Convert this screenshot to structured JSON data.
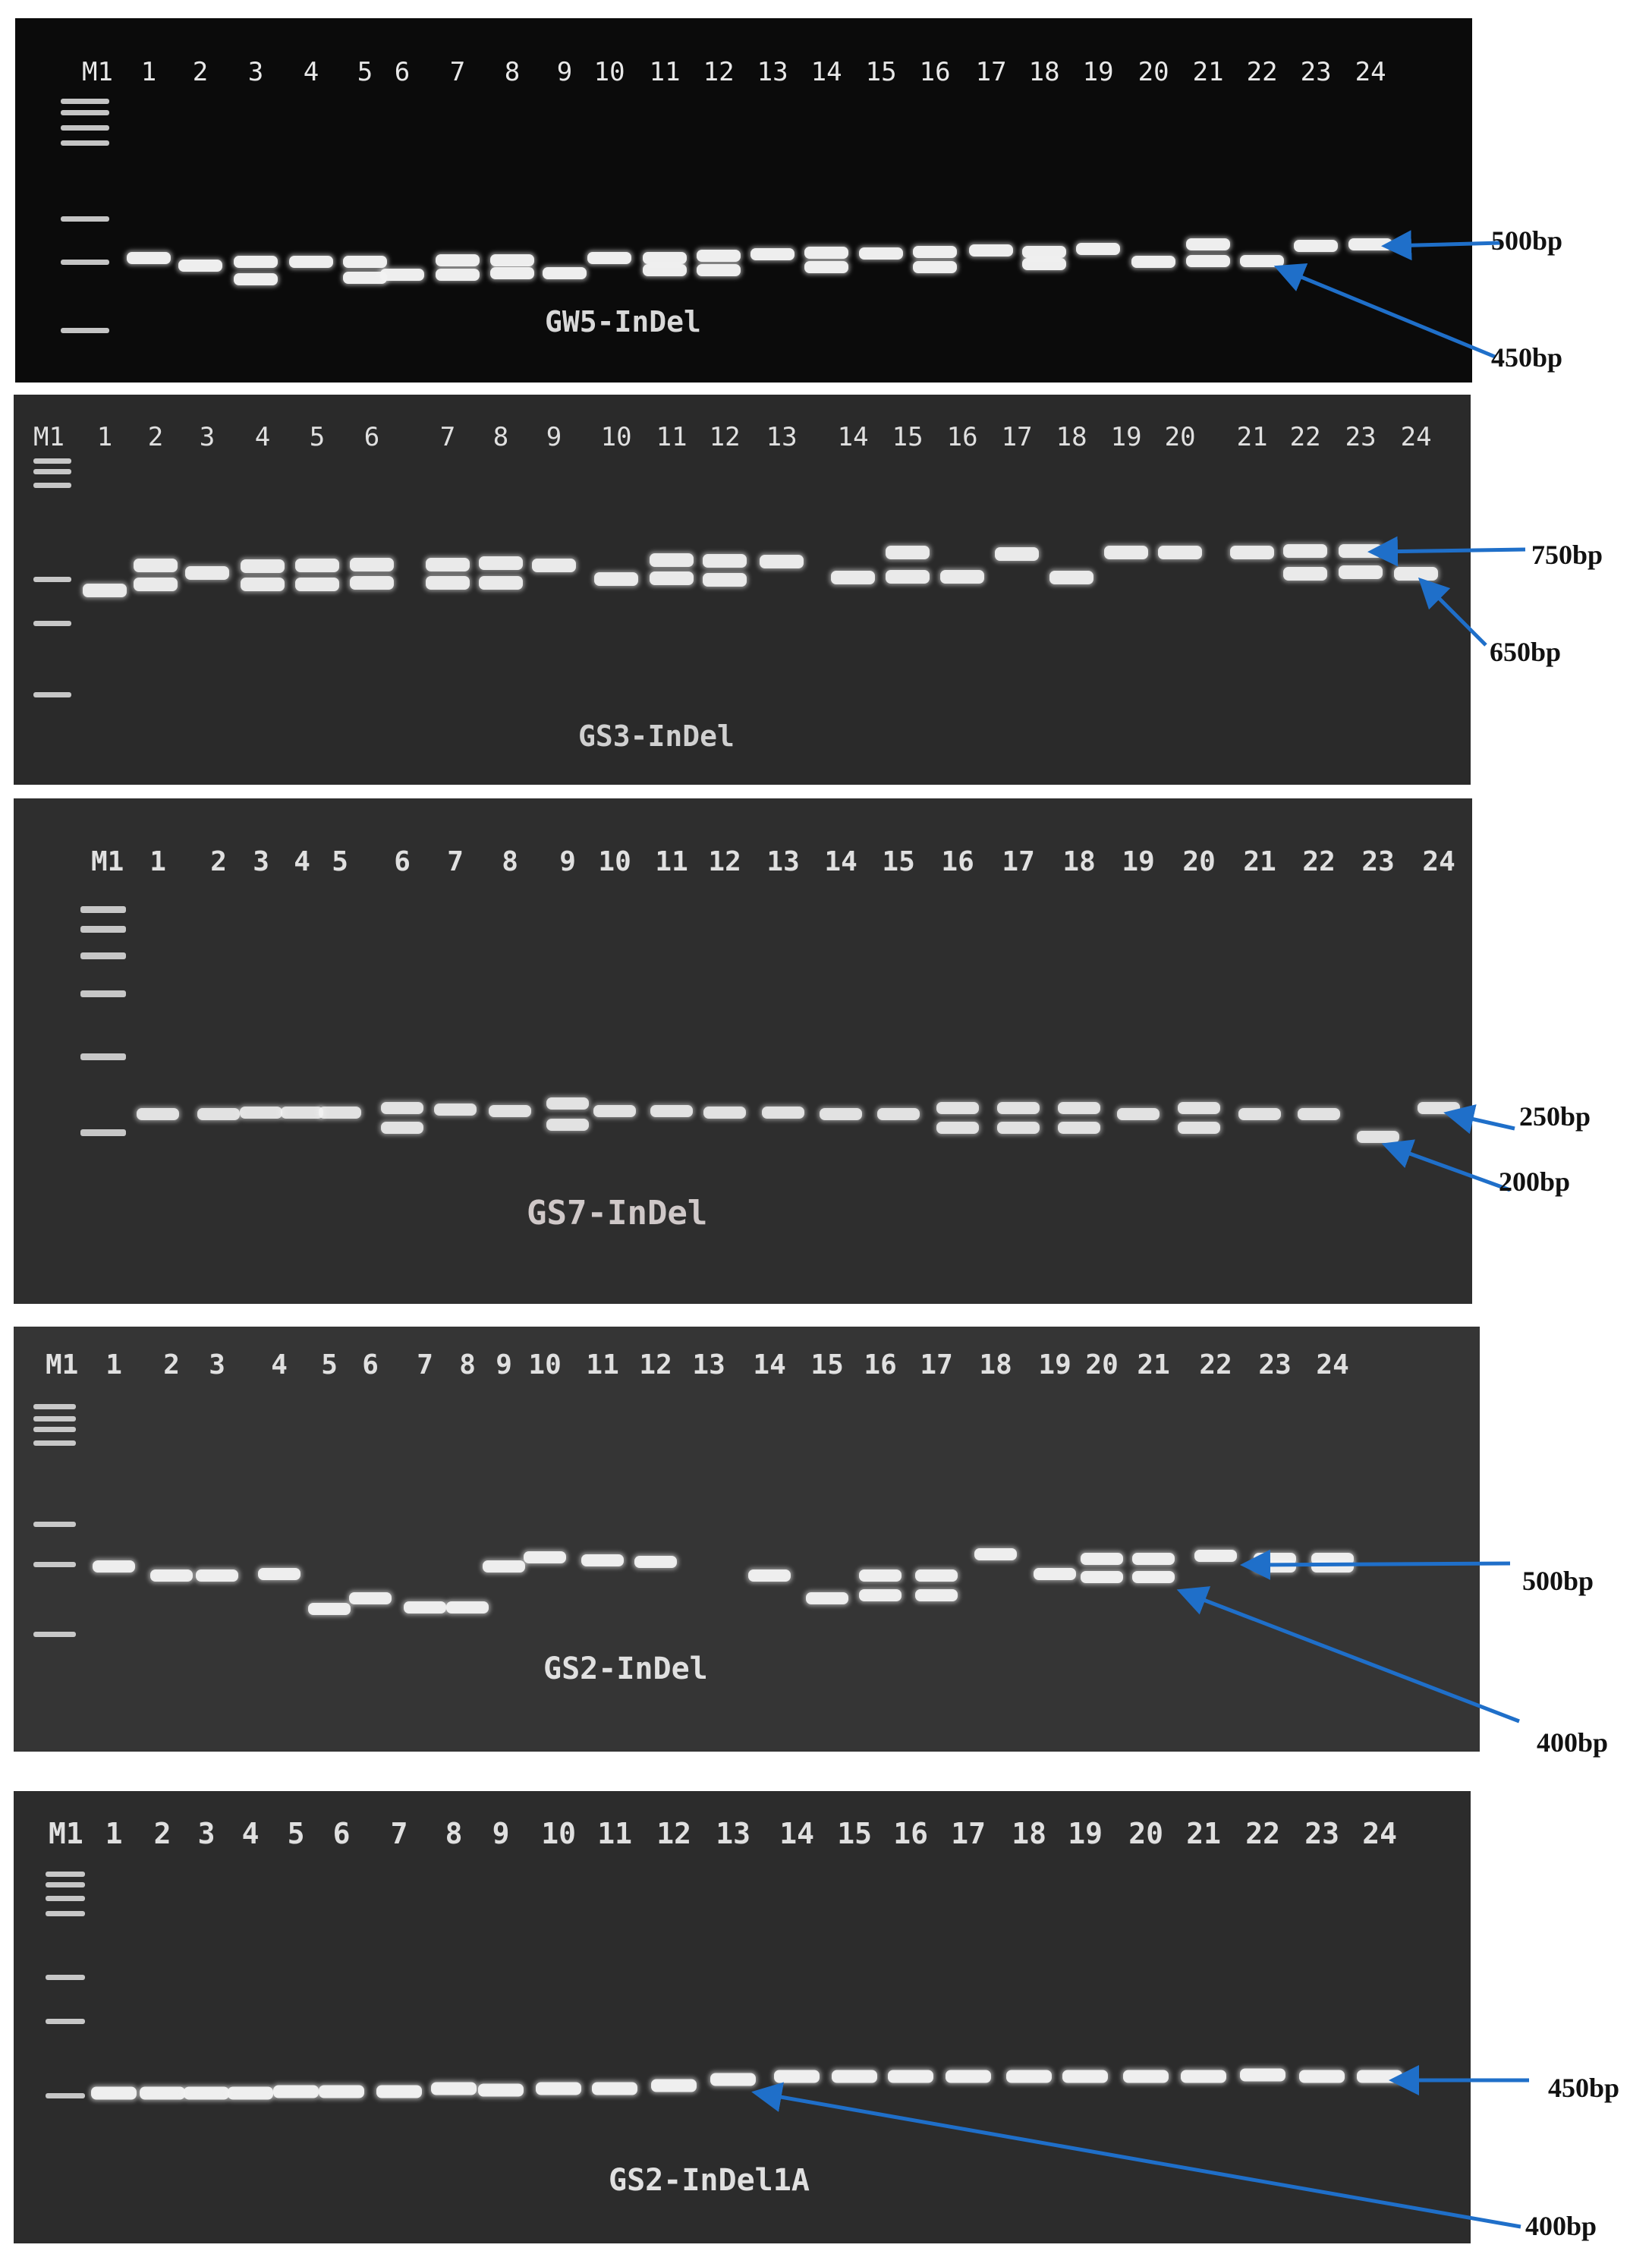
{
  "figure": {
    "panels": [
      {
        "id": "gw5",
        "marker_label": "M1",
        "lane_labels": [
          "1",
          "2",
          "3",
          "4",
          "5",
          "6",
          "7",
          "8",
          "9",
          "10",
          "11",
          "12",
          "13",
          "14",
          "15",
          "16",
          "17",
          "18",
          "19",
          "20",
          "21",
          "22",
          "23",
          "24"
        ],
        "gel_label": "GW5-InDel",
        "size_labels": [
          "500bp",
          "450bp"
        ],
        "background": "#0b0b0b"
      },
      {
        "id": "gs3",
        "marker_label": "M1",
        "lane_labels": [
          "1",
          "2",
          "3",
          "4",
          "5",
          "6",
          "7",
          "8",
          "9",
          "10",
          "11",
          "12",
          "13",
          "14",
          "15",
          "16",
          "17",
          "18",
          "19",
          "20",
          "21",
          "22",
          "23",
          "24"
        ],
        "gel_label": "GS3-InDel",
        "size_labels": [
          "750bp",
          "650bp"
        ],
        "background": "#2a2a2a"
      },
      {
        "id": "gs7",
        "marker_label": "M1",
        "lane_labels": [
          "1",
          "2",
          "3",
          "4",
          "5",
          "6",
          "7",
          "8",
          "9",
          "10",
          "11",
          "12",
          "13",
          "14",
          "15",
          "16",
          "17",
          "18",
          "19",
          "20",
          "21",
          "22",
          "23",
          "24"
        ],
        "gel_label": "GS7-InDel",
        "size_labels": [
          "250bp",
          "200bp"
        ],
        "background": "#2e2e2e"
      },
      {
        "id": "gs2",
        "marker_label": "M1",
        "lane_labels": [
          "1",
          "2",
          "3",
          "4",
          "5",
          "6",
          "7",
          "8",
          "9",
          "10",
          "11",
          "12",
          "13",
          "14",
          "15",
          "16",
          "17",
          "18",
          "19",
          "20",
          "21",
          "22",
          "23",
          "24"
        ],
        "gel_label": "GS2-InDel",
        "size_labels": [
          "500bp",
          "400bp"
        ],
        "background": "#353535"
      },
      {
        "id": "gs2a",
        "marker_label": "M1",
        "lane_labels": [
          "1",
          "2",
          "3",
          "4",
          "5",
          "6",
          "7",
          "8",
          "9",
          "10",
          "11",
          "12",
          "13",
          "14",
          "15",
          "16",
          "17",
          "18",
          "19",
          "20",
          "21",
          "22",
          "23",
          "24"
        ],
        "gel_label": "GS2-InDel1A",
        "size_labels": [
          "450bp",
          "400bp"
        ],
        "background": "#2c2c2c"
      }
    ],
    "arrow_color": "#1f6fc9",
    "band_color": "#f2f2f2"
  }
}
